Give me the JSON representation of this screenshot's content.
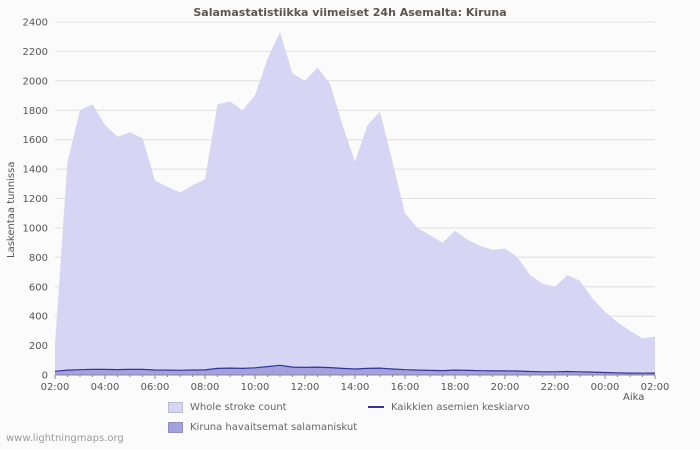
{
  "chart_data": {
    "type": "area",
    "title": "Salamastatistiikka viimeiset 24h Asemalta: Kiruna",
    "ylabel": "Laskentaa tunnissa",
    "xlabel": "Aika",
    "ylim": [
      0,
      2400
    ],
    "grid": "horizontal-only",
    "legend_position": "bottom",
    "y_ticks": [
      0,
      200,
      400,
      600,
      800,
      1000,
      1200,
      1400,
      1600,
      1800,
      2000,
      2200,
      2400
    ],
    "x_tick_labels": [
      "02:00",
      "04:00",
      "06:00",
      "08:00",
      "10:00",
      "12:00",
      "14:00",
      "16:00",
      "18:00",
      "20:00",
      "22:00",
      "00:00",
      "02:00"
    ],
    "x_step_minutes": 30,
    "series": [
      {
        "name": "Whole stroke count",
        "type": "area",
        "color": "#d6d5f4",
        "values": [
          210,
          1450,
          1800,
          1840,
          1700,
          1620,
          1650,
          1610,
          1320,
          1280,
          1240,
          1290,
          1330,
          1840,
          1860,
          1800,
          1900,
          2150,
          2330,
          2050,
          2000,
          2090,
          1980,
          1700,
          1450,
          1700,
          1790,
          1450,
          1100,
          1000,
          950,
          900,
          980,
          920,
          880,
          850,
          860,
          800,
          680,
          620,
          600,
          680,
          640,
          520,
          430,
          360,
          300,
          250,
          260
        ]
      },
      {
        "name": "Kiruna havaitsemat salamaniskut",
        "type": "area",
        "color": "#a3a1e0",
        "values": [
          20,
          30,
          32,
          35,
          34,
          33,
          35,
          34,
          30,
          29,
          29,
          30,
          32,
          42,
          44,
          42,
          46,
          55,
          65,
          52,
          50,
          52,
          48,
          42,
          38,
          42,
          45,
          38,
          33,
          30,
          28,
          27,
          30,
          28,
          26,
          25,
          25,
          24,
          21,
          19,
          19,
          21,
          19,
          17,
          14,
          12,
          10,
          9,
          10
        ]
      },
      {
        "name": "Kaikkien asemien keskiarvo",
        "type": "line",
        "color": "#333399",
        "values": [
          25,
          33,
          36,
          39,
          38,
          37,
          39,
          38,
          34,
          33,
          32,
          34,
          35,
          45,
          47,
          45,
          49,
          57,
          66,
          54,
          52,
          54,
          50,
          45,
          41,
          45,
          47,
          41,
          36,
          33,
          31,
          30,
          33,
          31,
          29,
          28,
          28,
          27,
          24,
          22,
          22,
          24,
          22,
          20,
          17,
          15,
          13,
          12,
          13
        ]
      }
    ],
    "colors": {
      "grid": "#e0e0e0",
      "axis": "#888888",
      "tick_text": "#555555",
      "title_text": "#5c5550"
    }
  },
  "footer": {
    "watermark": "www.lightningmaps.org"
  }
}
